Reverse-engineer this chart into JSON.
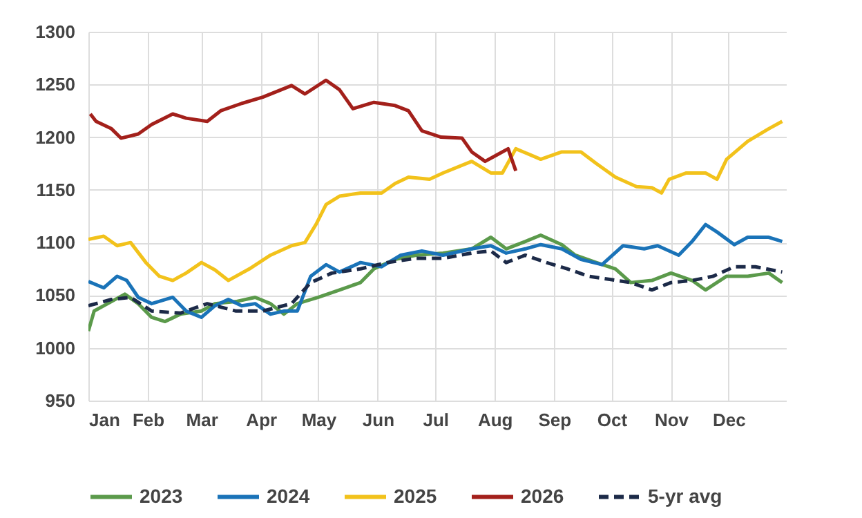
{
  "chart_data": {
    "type": "line",
    "xlim": [
      "--01-01",
      "--12-31"
    ],
    "xticks": [
      {
        "value": "--01-01",
        "label": "Jan"
      },
      {
        "value": "--02-01",
        "label": "Feb"
      },
      {
        "value": "--03-01",
        "label": "Mar"
      },
      {
        "value": "--04-01",
        "label": "Apr"
      },
      {
        "value": "--05-01",
        "label": "May"
      },
      {
        "value": "--06-01",
        "label": "Jun"
      },
      {
        "value": "--07-01",
        "label": "Jul"
      },
      {
        "value": "--08-01",
        "label": "Aug"
      },
      {
        "value": "--09-01",
        "label": "Sep"
      },
      {
        "value": "--10-01",
        "label": "Oct"
      },
      {
        "value": "--11-01",
        "label": "Nov"
      },
      {
        "value": "--12-01",
        "label": "Dec"
      }
    ],
    "ylim": [
      950,
      1300
    ],
    "yticks": [
      950,
      1000,
      1050,
      1100,
      1150,
      1200,
      1250,
      1300
    ],
    "grid": true,
    "legend": "bottom",
    "marker": "none",
    "series": [
      {
        "name": "2023",
        "color": "#5b9a4b",
        "line_style": "solid",
        "x": [
          "--01-01",
          "--01-04",
          "--01-13",
          "--01-20",
          "--01-27",
          "--02-03",
          "--02-10",
          "--02-18",
          "--03-01",
          "--03-08",
          "--03-19",
          "--03-29",
          "--04-06",
          "--04-13",
          "--04-20",
          "--05-01",
          "--05-12",
          "--05-23",
          "--05-30",
          "--06-10",
          "--06-21",
          "--07-05",
          "--07-20",
          "--07-30",
          "--08-07",
          "--08-17",
          "--08-25",
          "--09-05",
          "--09-12",
          "--09-23",
          "--10-03",
          "--10-11",
          "--10-22",
          "--11-01",
          "--11-12",
          "--11-19",
          "--11-30",
          "--12-11",
          "--12-22",
          "--12-29"
        ],
        "values": [
          1016,
          1035,
          1044,
          1051,
          1042,
          1029,
          1025,
          1032,
          1035,
          1042,
          1044,
          1048,
          1042,
          1032,
          1042,
          1048,
          1055,
          1062,
          1075,
          1084,
          1088,
          1090,
          1094,
          1105,
          1094,
          1101,
          1107,
          1098,
          1088,
          1081,
          1075,
          1062,
          1064,
          1071,
          1064,
          1055,
          1068,
          1068,
          1071,
          1062
        ]
      },
      {
        "name": "2024",
        "color": "#1a73b8",
        "line_style": "solid",
        "x": [
          "--01-01",
          "--01-09",
          "--01-16",
          "--01-21",
          "--01-27",
          "--02-03",
          "--02-14",
          "--02-21",
          "--03-01",
          "--03-08",
          "--03-15",
          "--03-22",
          "--03-29",
          "--04-06",
          "--04-13",
          "--04-20",
          "--04-27",
          "--05-05",
          "--05-12",
          "--05-23",
          "--06-03",
          "--06-13",
          "--06-24",
          "--07-05",
          "--07-20",
          "--07-30",
          "--08-07",
          "--08-17",
          "--08-25",
          "--09-05",
          "--09-15",
          "--09-26",
          "--10-07",
          "--10-18",
          "--10-25",
          "--11-05",
          "--11-12",
          "--11-19",
          "--11-25",
          "--12-04",
          "--12-11",
          "--12-22",
          "--12-29"
        ],
        "values": [
          1063,
          1057,
          1068,
          1064,
          1048,
          1042,
          1048,
          1035,
          1029,
          1040,
          1046,
          1040,
          1042,
          1032,
          1035,
          1035,
          1068,
          1079,
          1072,
          1081,
          1077,
          1088,
          1092,
          1088,
          1094,
          1097,
          1090,
          1094,
          1098,
          1094,
          1084,
          1079,
          1097,
          1094,
          1097,
          1088,
          1101,
          1117,
          1110,
          1098,
          1105,
          1105,
          1101
        ]
      },
      {
        "name": "2025",
        "color": "#f2c21b",
        "line_style": "solid",
        "x": [
          "--01-01",
          "--01-09",
          "--01-16",
          "--01-23",
          "--01-31",
          "--02-07",
          "--02-14",
          "--02-21",
          "--03-01",
          "--03-08",
          "--03-15",
          "--03-26",
          "--04-06",
          "--04-17",
          "--04-24",
          "--04-30",
          "--05-05",
          "--05-12",
          "--05-23",
          "--06-03",
          "--06-10",
          "--06-17",
          "--06-28",
          "--07-05",
          "--07-20",
          "--07-30",
          "--08-05",
          "--08-12",
          "--08-25",
          "--09-05",
          "--09-15",
          "--09-23",
          "--10-03",
          "--10-14",
          "--10-22",
          "--10-27",
          "--10-31",
          "--11-09",
          "--11-19",
          "--11-25",
          "--11-30",
          "--12-11",
          "--12-22",
          "--12-29"
        ],
        "values": [
          1103,
          1106,
          1097,
          1100,
          1081,
          1068,
          1064,
          1071,
          1081,
          1074,
          1064,
          1075,
          1088,
          1097,
          1100,
          1118,
          1136,
          1144,
          1147,
          1147,
          1156,
          1162,
          1160,
          1166,
          1177,
          1166,
          1166,
          1189,
          1179,
          1186,
          1186,
          1175,
          1162,
          1153,
          1152,
          1147,
          1160,
          1166,
          1166,
          1160,
          1179,
          1196,
          1208,
          1215
        ]
      },
      {
        "name": "2026",
        "color": "#a3201b",
        "line_style": "solid",
        "x": [
          "--01-02",
          "--01-05",
          "--01-13",
          "--01-18",
          "--01-27",
          "--02-03",
          "--02-14",
          "--02-21",
          "--03-04",
          "--03-11",
          "--03-22",
          "--04-02",
          "--04-17",
          "--04-24",
          "--05-05",
          "--05-12",
          "--05-19",
          "--05-30",
          "--06-10",
          "--06-17",
          "--06-24",
          "--07-04",
          "--07-15",
          "--07-20",
          "--07-27",
          "--08-02",
          "--08-08",
          "--08-12"
        ],
        "values": [
          1222,
          1215,
          1208,
          1199,
          1203,
          1212,
          1222,
          1218,
          1215,
          1225,
          1232,
          1238,
          1249,
          1241,
          1254,
          1245,
          1227,
          1233,
          1230,
          1225,
          1206,
          1200,
          1199,
          1186,
          1177,
          1183,
          1189,
          1168
        ]
      },
      {
        "name": "5-yr avg",
        "color": "#1c2a48",
        "line_style": "dashed",
        "x": [
          "--01-01",
          "--01-13",
          "--01-23",
          "--02-03",
          "--02-18",
          "--03-04",
          "--03-19",
          "--04-02",
          "--04-17",
          "--04-27",
          "--05-08",
          "--05-23",
          "--06-06",
          "--06-21",
          "--07-05",
          "--07-20",
          "--07-30",
          "--08-07",
          "--08-17",
          "--08-28",
          "--09-08",
          "--09-19",
          "--09-30",
          "--10-11",
          "--10-22",
          "--11-01",
          "--11-12",
          "--11-23",
          "--12-04",
          "--12-15",
          "--12-29"
        ],
        "values": [
          1040,
          1046,
          1048,
          1035,
          1033,
          1042,
          1035,
          1035,
          1042,
          1062,
          1071,
          1075,
          1081,
          1085,
          1085,
          1090,
          1092,
          1081,
          1088,
          1081,
          1075,
          1068,
          1065,
          1062,
          1055,
          1062,
          1064,
          1068,
          1077,
          1077,
          1072
        ]
      }
    ]
  }
}
